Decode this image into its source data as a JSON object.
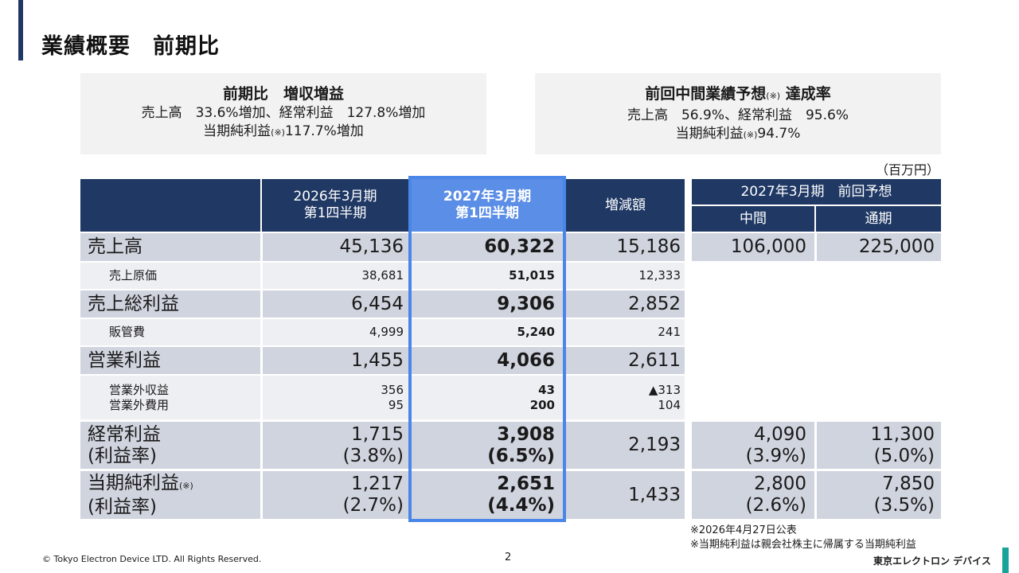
{
  "title": "業績概要　前期比",
  "summary_left": {
    "heading": "前期比　増収増益",
    "line1": "売上高　33.6%増加、経常利益　127.8%増加",
    "line2_pre": "当期純利益",
    "line2_mark": "(※)",
    "line2_post": "117.7%増加"
  },
  "summary_right": {
    "heading_pre": "前回中間業績予想",
    "heading_mark": "(※)",
    "heading_post": " 達成率",
    "line1": "売上高　56.9%、経常利益　95.6%",
    "line2_pre": "当期純利益",
    "line2_mark": "(※)",
    "line2_post": "94.7%"
  },
  "unit": "（百万円）",
  "headers": {
    "col1_line1": "2026年3月期",
    "col1_line2": "第1四半期",
    "col2_line1": "2027年3月期",
    "col2_line2": "第1四半期",
    "col3": "増減額",
    "forecast_group": "2027年3月期　前回予想",
    "forecast_mid": "中間",
    "forecast_full": "通期"
  },
  "rows": [
    {
      "label": "売上高",
      "prev": "45,136",
      "curr": "60,322",
      "diff": "15,186",
      "f_mid": "106,000",
      "f_full": "225,000"
    },
    {
      "label": "売上原価",
      "prev": "38,681",
      "curr": "51,015",
      "diff": "12,333"
    },
    {
      "label": "売上総利益",
      "prev": "6,454",
      "curr": "9,306",
      "diff": "2,852"
    },
    {
      "label": "販管費",
      "prev": "4,999",
      "curr": "5,240",
      "diff": "241"
    },
    {
      "label": "営業利益",
      "prev": "1,455",
      "curr": "4,066",
      "diff": "2,611"
    },
    {
      "label1": "営業外収益",
      "label2": "営業外費用",
      "prev1": "356",
      "prev2": "95",
      "curr1": "43",
      "curr2": "200",
      "diff1": "▲313",
      "diff2": "104"
    },
    {
      "label1": "経常利益",
      "label2": "(利益率)",
      "prev1": "1,715",
      "prev2": "(3.8%)",
      "curr1": "3,908",
      "curr2": "(6.5%)",
      "diff": "2,193",
      "f_mid1": "4,090",
      "f_mid2": "(3.9%)",
      "f_full1": "11,300",
      "f_full2": "(5.0%)"
    },
    {
      "label1": "当期純利益",
      "label1_mark": "(※)",
      "label2": "(利益率)",
      "prev1": "1,217",
      "prev2": "(2.7%)",
      "curr1": "2,651",
      "curr2": "(4.4%)",
      "diff": "1,433",
      "f_mid1": "2,800",
      "f_mid2": "(2.6%)",
      "f_full1": "7,850",
      "f_full2": "(3.5%)"
    }
  ],
  "notes": [
    "※2026年4月27日公表",
    "※当期純利益は親会社株主に帰属する当期純利益"
  ],
  "footer": {
    "copyright": "© Tokyo Electron Device LTD. All Rights Reserved.",
    "page": "2",
    "logo": "東京エレクトロン デバイス"
  }
}
